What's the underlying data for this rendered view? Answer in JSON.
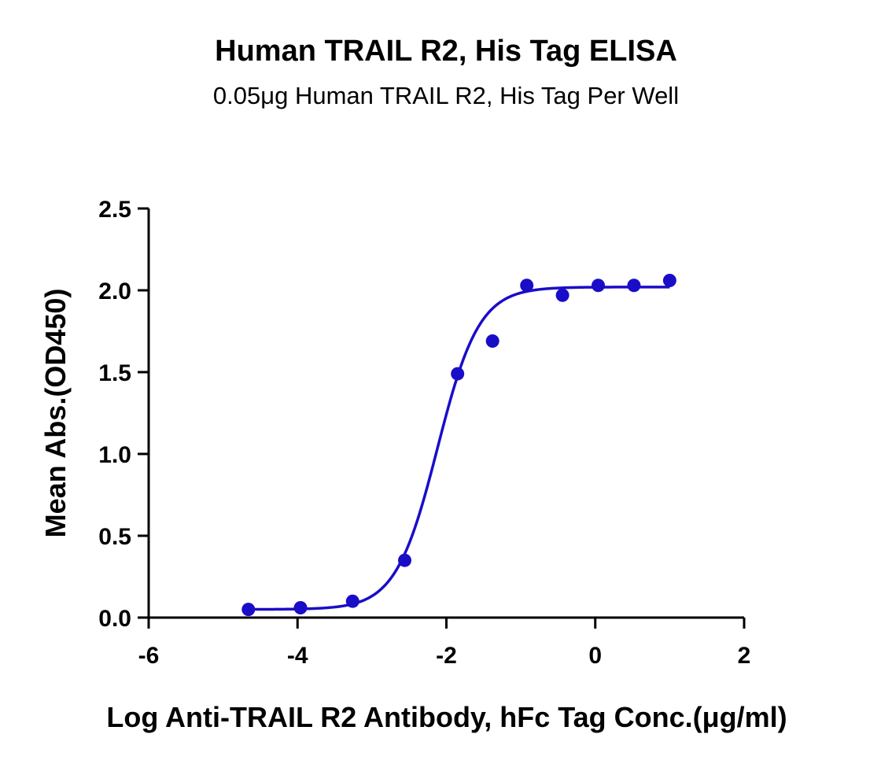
{
  "chart_data": {
    "type": "scatter",
    "title": "Human TRAIL R2, His Tag ELISA",
    "subtitle": "0.05μg Human TRAIL R2, His Tag Per Well",
    "xlabel": "Log Anti-TRAIL R2 Antibody, hFc Tag Conc.(μg/ml)",
    "ylabel": "Mean Abs.(OD450)",
    "xlim": [
      -6,
      2
    ],
    "ylim": [
      0,
      2.5
    ],
    "x_ticks": [
      -6,
      -4,
      -2,
      0,
      2
    ],
    "y_ticks": [
      0.0,
      0.5,
      1.0,
      1.5,
      2.0,
      2.5
    ],
    "x_tick_labels": [
      "-6",
      "-4",
      "-2",
      "0",
      "2"
    ],
    "y_tick_labels": [
      "0.0",
      "0.5",
      "1.0",
      "1.5",
      "2.0",
      "2.5"
    ],
    "grid": false,
    "color": "#1a0dc8",
    "series": [
      {
        "x": [
          -4.66,
          -3.96,
          -3.26,
          -2.56,
          -1.85,
          -1.38,
          -0.92,
          -0.44,
          0.04,
          0.52,
          1.0
        ],
        "values": [
          0.05,
          0.06,
          0.1,
          0.35,
          1.49,
          1.69,
          2.03,
          1.97,
          2.03,
          2.03,
          2.06
        ]
      }
    ],
    "fit_curve": {
      "model": "4PL",
      "bottom": 0.05,
      "top": 2.02,
      "logEC50": -2.12,
      "hill": 1.55,
      "x_range": [
        -4.66,
        1.0
      ]
    }
  }
}
